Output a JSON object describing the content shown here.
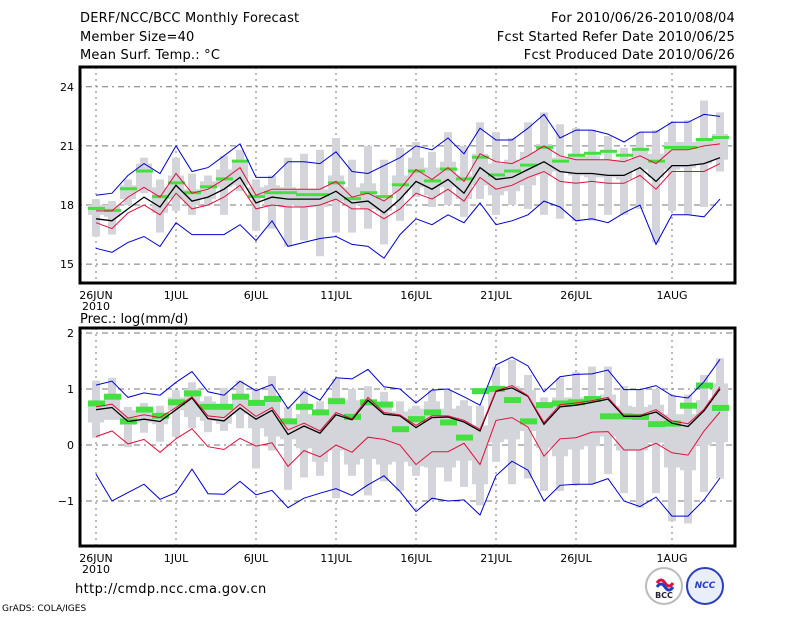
{
  "header": {
    "title": "DERF/NCC/BCC Monthly Forecast",
    "member_size": "Member Size=40",
    "variable": "Mean Surf. Temp.: °C",
    "period": "For 2010/06/26-2010/08/04",
    "start_date": "Fcst Started Refer Date 2010/06/25",
    "produced_date": "Fcst Produced Date 2010/06/26"
  },
  "footer": {
    "url": "http://cmdp.ncc.cma.gov.cn",
    "grads": "GrADS: COLA/IGES",
    "logo_bcc": "BCC",
    "logo_ncc": "NCC"
  },
  "colors": {
    "mean": "#000000",
    "inner_band": "#e0103c",
    "outer_band": "#0000d0",
    "box": "#d4d5da",
    "observed": "#44e040",
    "grid": "#777777"
  },
  "chart_data": [
    {
      "type": "line",
      "title": "Mean Surf. Temp.: °C",
      "ylabel": "°C",
      "ylim": [
        14,
        25
      ],
      "yticks": [
        15,
        18,
        21,
        24
      ],
      "xtick_labels": [
        {
          "day": 0,
          "label": "26JUN",
          "sub": "2010"
        },
        {
          "day": 5,
          "label": "1JUL"
        },
        {
          "day": 10,
          "label": "6JUL"
        },
        {
          "day": 15,
          "label": "11JUL"
        },
        {
          "day": 20,
          "label": "16JUL"
        },
        {
          "day": 25,
          "label": "21JUL"
        },
        {
          "day": 30,
          "label": "26JUL"
        },
        {
          "day": 36,
          "label": "1AUG"
        }
      ],
      "grid": true,
      "days": 40,
      "series": [
        {
          "name": "ensemble_mean",
          "color": "black",
          "values": [
            17.3,
            17.2,
            17.8,
            18.4,
            17.9,
            19.0,
            18.2,
            18.4,
            18.8,
            19.4,
            18.1,
            18.4,
            18.3,
            18.3,
            18.3,
            18.7,
            18.1,
            18.2,
            17.6,
            18.3,
            19.2,
            18.8,
            19.3,
            18.6,
            19.9,
            19.3,
            19.4,
            19.8,
            20.2,
            19.7,
            19.6,
            19.6,
            19.5,
            19.5,
            19.9,
            19.2,
            20.0,
            20.0,
            20.1,
            20.4
          ]
        },
        {
          "name": "upper_inner",
          "color": "red",
          "values": [
            17.7,
            17.7,
            18.4,
            18.9,
            18.4,
            19.6,
            18.6,
            18.8,
            19.3,
            19.9,
            18.5,
            18.8,
            18.8,
            18.8,
            18.8,
            19.2,
            18.4,
            18.6,
            18.2,
            18.8,
            19.8,
            19.3,
            19.9,
            19.2,
            20.6,
            20.2,
            20.1,
            20.5,
            21.0,
            20.5,
            20.3,
            20.3,
            20.3,
            20.2,
            20.5,
            20.1,
            20.8,
            20.8,
            21.0,
            21.1
          ]
        },
        {
          "name": "lower_inner",
          "color": "red",
          "values": [
            17.1,
            16.8,
            17.6,
            18.0,
            17.5,
            18.6,
            17.8,
            18.0,
            18.4,
            19.0,
            17.8,
            18.0,
            17.9,
            17.9,
            18.0,
            18.3,
            17.8,
            17.8,
            17.3,
            17.8,
            18.6,
            18.3,
            18.8,
            18.2,
            19.4,
            18.8,
            19.0,
            19.4,
            19.7,
            19.2,
            19.1,
            19.2,
            19.1,
            19.1,
            19.5,
            18.8,
            19.7,
            19.7,
            19.7,
            20.1
          ]
        },
        {
          "name": "upper_outer",
          "color": "blue",
          "values": [
            18.5,
            18.6,
            19.5,
            20.1,
            19.6,
            21.0,
            19.7,
            19.9,
            20.5,
            21.1,
            19.4,
            19.4,
            20.2,
            20.2,
            20.1,
            20.7,
            19.7,
            19.6,
            20.0,
            20.4,
            21.0,
            20.8,
            21.4,
            20.6,
            21.9,
            21.3,
            21.3,
            21.9,
            22.6,
            21.4,
            21.8,
            21.8,
            21.6,
            21.2,
            21.7,
            21.7,
            22.2,
            22.2,
            22.6,
            22.5
          ]
        },
        {
          "name": "lower_outer",
          "color": "blue",
          "values": [
            15.8,
            15.6,
            16.1,
            16.4,
            15.9,
            17.1,
            16.5,
            16.5,
            16.5,
            17.0,
            16.2,
            17.2,
            15.9,
            16.1,
            16.3,
            16.4,
            16.0,
            15.9,
            15.3,
            16.5,
            17.3,
            17.0,
            17.5,
            17.1,
            18.1,
            17.0,
            17.2,
            17.5,
            18.2,
            17.9,
            17.2,
            17.3,
            17.1,
            17.6,
            18.0,
            16.0,
            17.5,
            17.5,
            17.4,
            18.3
          ]
        }
      ],
      "boxes": {
        "whisker_low": [
          16.4,
          16.5,
          18.0,
          18.6,
          16.6,
          17.7,
          17.5,
          18.0,
          17.5,
          18.7,
          16.7,
          16.8,
          15.9,
          16.2,
          15.4,
          16.6,
          16.6,
          16.8,
          16.0,
          17.2,
          18.4,
          17.9,
          18.0,
          17.4,
          18.3,
          17.5,
          18.0,
          17.8,
          17.5,
          17.3,
          17.2,
          17.2,
          17.5,
          17.5,
          17.8,
          16.1,
          17.7,
          17.5,
          17.9,
          19.7
        ],
        "box_low": [
          17.5,
          17.4,
          18.3,
          18.7,
          17.6,
          18.3,
          18.0,
          18.3,
          18.9,
          19.0,
          18.4,
          18.0,
          18.0,
          17.9,
          17.9,
          18.2,
          18.0,
          17.8,
          17.7,
          18.6,
          18.9,
          18.5,
          18.9,
          18.3,
          19.0,
          18.5,
          18.7,
          19.0,
          19.5,
          19.7,
          19.5,
          19.4,
          19.4,
          19.3,
          19.8,
          19.4,
          19.8,
          19.9,
          20.1,
          20.3
        ],
        "box_high": [
          18.0,
          18.0,
          19.0,
          20.1,
          18.9,
          19.5,
          18.8,
          19.2,
          19.8,
          20.3,
          18.9,
          19.0,
          18.9,
          18.8,
          18.8,
          19.5,
          18.9,
          19.1,
          18.5,
          19.5,
          20.4,
          19.9,
          20.2,
          19.5,
          20.6,
          20.1,
          20.3,
          20.7,
          21.1,
          20.4,
          20.6,
          20.5,
          20.3,
          20.3,
          20.8,
          20.6,
          21.2,
          21.2,
          21.3,
          21.6
        ],
        "whisker_high": [
          18.3,
          18.2,
          19.3,
          20.4,
          19.3,
          20.4,
          19.6,
          19.5,
          20.5,
          20.8,
          19.3,
          19.5,
          20.4,
          20.6,
          20.8,
          21.4,
          20.3,
          21.0,
          20.3,
          20.9,
          21.2,
          20.7,
          21.7,
          21.0,
          22.2,
          21.7,
          21.4,
          22.2,
          22.7,
          22.1,
          21.9,
          21.8,
          21.5,
          20.9,
          21.7,
          21.8,
          22.2,
          22.3,
          23.3,
          22.7
        ]
      },
      "observed_markers": [
        17.8,
        17.7,
        18.8,
        19.7,
        18.4,
        19.1,
        18.6,
        18.9,
        19.3,
        20.2,
        18.4,
        18.6,
        18.6,
        18.5,
        18.5,
        19.1,
        18.3,
        18.6,
        18.4,
        19.0,
        19.7,
        19.2,
        19.8,
        19.3,
        20.4,
        19.5,
        19.7,
        20.0,
        20.9,
        20.2,
        20.5,
        20.6,
        20.7,
        20.5,
        20.8,
        20.2,
        20.9,
        20.9,
        21.3,
        21.4
      ]
    },
    {
      "type": "line",
      "title": "Prec.: log(mm/d)",
      "ylabel": "log(mm/d)",
      "ylim": [
        -1.8,
        2.1
      ],
      "yticks": [
        -1,
        0,
        1,
        2
      ],
      "xtick_labels": [
        {
          "day": 0,
          "label": "26JUN",
          "sub": "2010"
        },
        {
          "day": 5,
          "label": "1JUL"
        },
        {
          "day": 10,
          "label": "6JUL"
        },
        {
          "day": 15,
          "label": "11JUL"
        },
        {
          "day": 20,
          "label": "16JUL"
        },
        {
          "day": 25,
          "label": "21JUL"
        },
        {
          "day": 30,
          "label": "26JUL"
        },
        {
          "day": 36,
          "label": "1AUG"
        }
      ],
      "grid": true,
      "days": 40,
      "series": [
        {
          "name": "ensemble_mean",
          "color": "black",
          "values": [
            0.63,
            0.67,
            0.42,
            0.46,
            0.42,
            0.63,
            0.84,
            0.47,
            0.43,
            0.66,
            0.46,
            0.62,
            0.19,
            0.34,
            0.21,
            0.54,
            0.45,
            0.8,
            0.55,
            0.52,
            0.31,
            0.49,
            0.5,
            0.41,
            0.25,
            0.96,
            1.02,
            0.87,
            0.37,
            0.68,
            0.71,
            0.76,
            0.82,
            0.51,
            0.51,
            0.59,
            0.39,
            0.33,
            0.61,
            1.0
          ]
        },
        {
          "name": "upper_inner",
          "color": "red",
          "values": [
            0.68,
            0.73,
            0.48,
            0.54,
            0.49,
            0.67,
            0.86,
            0.52,
            0.49,
            0.73,
            0.51,
            0.67,
            0.27,
            0.39,
            0.25,
            0.58,
            0.47,
            0.85,
            0.58,
            0.54,
            0.35,
            0.52,
            0.52,
            0.44,
            0.28,
            0.97,
            1.06,
            0.88,
            0.4,
            0.72,
            0.75,
            0.79,
            0.85,
            0.53,
            0.53,
            0.63,
            0.43,
            0.38,
            0.64,
            1.04
          ]
        },
        {
          "name": "lower_inner",
          "color": "red",
          "values": [
            0.15,
            0.25,
            0.02,
            0.1,
            -0.13,
            0.11,
            0.29,
            -0.03,
            -0.08,
            0.12,
            -0.02,
            0.04,
            -0.38,
            -0.1,
            -0.21,
            0.0,
            -0.13,
            0.14,
            0.1,
            0.0,
            -0.35,
            -0.12,
            -0.12,
            0.03,
            -0.35,
            0.44,
            0.49,
            0.32,
            -0.2,
            0.11,
            0.13,
            0.23,
            0.24,
            -0.09,
            -0.09,
            0.03,
            -0.14,
            -0.18,
            0.25,
            0.59
          ]
        },
        {
          "name": "upper_outer",
          "color": "blue",
          "values": [
            1.07,
            1.14,
            0.85,
            0.93,
            0.89,
            1.12,
            1.31,
            0.95,
            0.89,
            1.14,
            0.97,
            1.08,
            0.65,
            0.95,
            0.8,
            1.2,
            1.18,
            1.35,
            1.04,
            1.0,
            0.75,
            0.98,
            1.0,
            0.86,
            0.71,
            1.43,
            1.57,
            1.41,
            0.95,
            1.22,
            1.26,
            1.27,
            1.34,
            0.99,
            0.99,
            1.06,
            0.88,
            0.84,
            1.13,
            1.53
          ]
        },
        {
          "name": "lower_outer",
          "color": "blue",
          "values": [
            -0.52,
            -1.0,
            -0.85,
            -0.7,
            -0.97,
            -0.85,
            -0.43,
            -0.87,
            -0.88,
            -0.65,
            -0.89,
            -0.81,
            -1.12,
            -0.95,
            -0.86,
            -0.78,
            -0.9,
            -0.71,
            -0.55,
            -0.83,
            -1.19,
            -0.95,
            -1.0,
            -0.98,
            -1.25,
            -0.55,
            -0.29,
            -0.45,
            -1.0,
            -0.72,
            -0.7,
            -0.7,
            -0.6,
            -1.0,
            -1.1,
            -0.93,
            -1.27,
            -1.27,
            -0.98,
            -0.59
          ]
        },
        {
          "name": "lower_outer_tail",
          "color": "blue",
          "values": []
        }
      ],
      "boxes": {
        "whisker_low": [
          0.13,
          0.45,
          -0.04,
          0.22,
          0.06,
          0.15,
          0.3,
          0.23,
          0.25,
          0.3,
          -0.42,
          -0.1,
          -0.8,
          -0.58,
          -0.55,
          -0.95,
          -0.55,
          -0.9,
          -0.65,
          -0.82,
          -0.55,
          -0.98,
          -0.65,
          -0.75,
          -1.08,
          -0.3,
          -0.7,
          -0.6,
          -0.82,
          -0.82,
          -0.72,
          -0.7,
          -0.52,
          -0.86,
          -1.12,
          -0.86,
          -1.36,
          -1.4,
          -0.84,
          -0.6
        ],
        "box_low": [
          0.4,
          0.45,
          0.36,
          0.4,
          0.37,
          0.62,
          0.5,
          0.43,
          0.38,
          0.55,
          0.3,
          0.15,
          0.1,
          -0.06,
          -0.3,
          -0.1,
          -0.35,
          -0.25,
          -0.35,
          -0.3,
          -0.38,
          -0.4,
          -0.4,
          -0.28,
          -0.7,
          0.05,
          0.1,
          0.25,
          -0.05,
          -0.2,
          -0.08,
          -0.02,
          0.15,
          -0.1,
          -0.1,
          0.04,
          -0.4,
          -0.45,
          0.0,
          0.05
        ],
        "box_high": [
          0.78,
          0.88,
          0.62,
          0.68,
          0.55,
          0.85,
          1.0,
          0.78,
          0.68,
          0.9,
          0.78,
          0.88,
          0.45,
          0.55,
          0.53,
          0.85,
          0.8,
          0.75,
          0.7,
          0.6,
          0.65,
          0.78,
          0.65,
          0.7,
          0.35,
          1.0,
          1.05,
          0.98,
          0.67,
          0.85,
          0.85,
          0.85,
          0.9,
          0.7,
          0.68,
          0.72,
          0.55,
          0.55,
          0.8,
          1.1
        ],
        "whisker_high": [
          1.15,
          1.2,
          0.68,
          0.75,
          0.7,
          0.98,
          1.12,
          0.87,
          1.02,
          1.15,
          1.0,
          1.23,
          0.68,
          0.98,
          0.78,
          1.18,
          1.0,
          1.05,
          0.95,
          0.78,
          0.7,
          0.98,
          0.98,
          0.8,
          0.7,
          1.4,
          1.52,
          1.25,
          0.85,
          1.2,
          1.3,
          1.4,
          1.4,
          1.05,
          1.0,
          1.0,
          0.9,
          0.9,
          1.25,
          1.55
        ]
      },
      "observed_markers": [
        0.76,
        0.88,
        0.44,
        0.65,
        0.54,
        0.78,
        0.94,
        0.7,
        0.7,
        0.88,
        0.77,
        0.84,
        0.44,
        0.7,
        0.6,
        0.8,
        0.52,
        0.78,
        0.74,
        0.3,
        0.48,
        0.6,
        0.42,
        0.15,
        0.98,
        1.02,
        0.82,
        0.44,
        0.73,
        0.76,
        0.78,
        0.84,
        0.53,
        0.53,
        0.52,
        0.39,
        0.4,
        0.72,
        1.08,
        0.68
      ]
    }
  ]
}
